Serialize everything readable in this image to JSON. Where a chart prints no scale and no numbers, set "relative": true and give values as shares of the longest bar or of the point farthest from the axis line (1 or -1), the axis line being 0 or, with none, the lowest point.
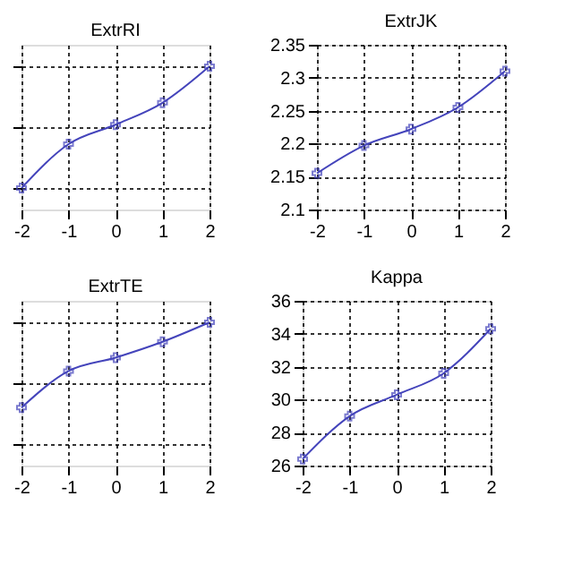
{
  "chart_data": [
    {
      "type": "line",
      "title": "ExtrRI",
      "relative": true,
      "x": [
        -2,
        -1,
        0,
        1,
        2
      ],
      "xlim": [
        -2,
        2
      ],
      "xticks": [
        -2,
        -1,
        0,
        1,
        2
      ],
      "grid": true,
      "marker": "cross",
      "tick_labels": "x",
      "series": [
        {
          "color": "#4444bb",
          "values": [
            0,
            0.36,
            0.52,
            0.7,
            1
          ]
        }
      ]
    },
    {
      "type": "line",
      "title": "ExtrJK",
      "x": [
        -2,
        -1,
        0,
        1,
        2
      ],
      "xlim": [
        -2,
        2
      ],
      "xticks": [
        -2,
        -1,
        0,
        1,
        2
      ],
      "ylim": [
        2.1,
        2.35
      ],
      "yticks": [
        {
          "value": 2.1,
          "label": "2.1"
        },
        2.15,
        {
          "value": 2.2,
          "label": "2.2"
        },
        2.25,
        {
          "value": 2.3,
          "label": "2.3"
        },
        2.35
      ],
      "grid": true,
      "marker": "cross",
      "series": [
        {
          "color": "#4444bb",
          "values": [
            2.155,
            2.197,
            2.222,
            2.255,
            2.31
          ]
        }
      ]
    },
    {
      "type": "line",
      "title": "ExtrTE",
      "relative": true,
      "x": [
        -2,
        -1,
        0,
        1,
        2
      ],
      "xlim": [
        -2,
        2
      ],
      "xticks": [
        -2,
        -1,
        0,
        1,
        2
      ],
      "grid": true,
      "marker": "cross",
      "tick_labels": "x",
      "series": [
        {
          "color": "#4444bb",
          "values": [
            0.3,
            0.6,
            0.71,
            0.84,
            1
          ]
        }
      ]
    },
    {
      "type": "line",
      "title": "Kappa",
      "x": [
        -2,
        -1,
        0,
        1,
        2
      ],
      "xlim": [
        -2,
        2
      ],
      "xticks": [
        -2,
        -1,
        0,
        1,
        2
      ],
      "ylim": [
        26,
        36
      ],
      "yticks": [
        26,
        28,
        30,
        32,
        34,
        36
      ],
      "grid": true,
      "marker": "cross",
      "series": [
        {
          "color": "#4444bb",
          "values": [
            26.4,
            29.0,
            30.3,
            31.6,
            34.3
          ]
        }
      ]
    }
  ]
}
